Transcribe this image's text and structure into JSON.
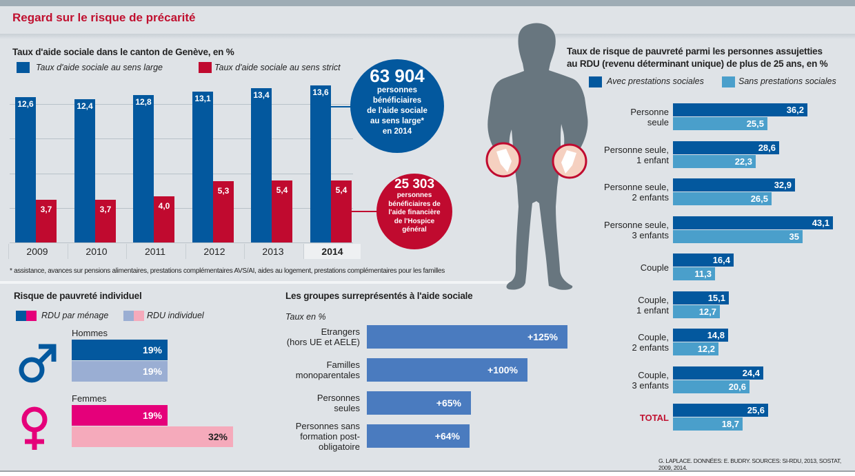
{
  "header": {
    "title": "Regard sur le risque de précarité"
  },
  "colors": {
    "blue": "#03589e",
    "red": "#c00a2f",
    "light_blue": "#4a9fcb",
    "group_bar": "#4a7bbf",
    "men_dark": "#03589e",
    "men_light": "#9aaed3",
    "women_dark": "#e5007a",
    "women_light": "#f5aabb",
    "silhouette": "#68767f",
    "total_label": "#c0102f"
  },
  "chart_data": [
    {
      "id": "aide-sociale",
      "type": "bar",
      "title": "Taux d'aide sociale dans le canton de Genève, en %",
      "categories": [
        "2009",
        "2010",
        "2011",
        "2012",
        "2013",
        "2014"
      ],
      "highlight_category": "2014",
      "series": [
        {
          "name": "Taux d'aide sociale au sens large",
          "labels": [
            "12,6",
            "12,4",
            "12,8",
            "13,1",
            "13,4",
            "13,6"
          ],
          "values": [
            12.6,
            12.4,
            12.8,
            13.1,
            13.4,
            13.6
          ]
        },
        {
          "name": "Taux d'aide sociale au sens strict",
          "labels": [
            "3,7",
            "3,7",
            "4,0",
            "5,3",
            "5,4",
            "5,4"
          ],
          "values": [
            3.7,
            3.7,
            4.0,
            5.3,
            5.4,
            5.4
          ]
        }
      ],
      "ylim": [
        0,
        12.6
      ],
      "gridlines": [
        3,
        6,
        9,
        12
      ],
      "grid": true,
      "callouts": [
        {
          "number": "63 904",
          "lines": [
            "personnes",
            "bénéficiaires",
            "de l'aide sociale",
            "au sens large*",
            "en 2014"
          ]
        },
        {
          "number": "25 303",
          "lines": [
            "personnes",
            "bénéficiaires de",
            "l'aide financière",
            "de l'Hospice",
            "général"
          ]
        }
      ],
      "footnote": "* assistance, avances sur pensions alimentaires, prestations complémentaires AVS/AI, aides au logement, prestations complémentaires pour les familles"
    },
    {
      "id": "pauvrete-individuel",
      "type": "bar",
      "title": "Risque de pauvreté individuel",
      "legend": [
        "RDU par ménage",
        "RDU individuel"
      ],
      "groups": [
        {
          "name": "Hommes",
          "values": [
            19,
            19
          ],
          "labels": [
            "19%",
            "19%"
          ]
        },
        {
          "name": "Femmes",
          "values": [
            19,
            32
          ],
          "labels": [
            "19%",
            "32%"
          ]
        }
      ]
    },
    {
      "id": "groupes-surrepresentes",
      "type": "bar",
      "title": "Les groupes surreprésentés à l'aide sociale",
      "subtitle": "Taux en %",
      "categories": [
        [
          "Etrangers",
          "(hors UE et AELE)"
        ],
        [
          "Familles",
          "monoparentales"
        ],
        [
          "Personnes",
          "seules"
        ],
        [
          "Personnes sans",
          "formation post-",
          "obligatoire"
        ]
      ],
      "values": [
        125,
        100,
        65,
        64
      ],
      "labels": [
        "+125%",
        "+100%",
        "+65%",
        "+64%"
      ]
    },
    {
      "id": "risque-pauvrete-rdu",
      "type": "bar",
      "title_lines": [
        "Taux de risque de pauvreté parmi les personnes assujetties",
        "au RDU (revenu déterminant unique) de plus de 25 ans, en %"
      ],
      "legend": [
        "Avec prestations sociales",
        "Sans prestations sociales"
      ],
      "categories": [
        [
          "Personne",
          "seule"
        ],
        [
          "Personne seule,",
          "1 enfant"
        ],
        [
          "Personne seule,",
          "2 enfants"
        ],
        [
          "Personne seule,",
          "3 enfants"
        ],
        [
          "Couple"
        ],
        [
          "Couple,",
          "1 enfant"
        ],
        [
          "Couple,",
          "2 enfants"
        ],
        [
          "Couple,",
          "3 enfants"
        ],
        [
          "TOTAL"
        ]
      ],
      "series": [
        {
          "name": "Avec prestations sociales",
          "values": [
            36.2,
            28.6,
            32.9,
            43.1,
            16.4,
            15.1,
            14.8,
            24.4,
            25.6
          ],
          "labels": [
            "36,2",
            "28,6",
            "32,9",
            "43,1",
            "16,4",
            "15,1",
            "14,8",
            "24,4",
            "25,6"
          ]
        },
        {
          "name": "Sans prestations sociales",
          "values": [
            25.5,
            22.3,
            26.5,
            35,
            11.3,
            12.7,
            12.2,
            20.6,
            18.7
          ],
          "labels": [
            "25,5",
            "22,3",
            "26,5",
            "35",
            "11,3",
            "12,7",
            "12,2",
            "20,6",
            "18,7"
          ]
        }
      ]
    }
  ],
  "credit": "G. LAPLACE. DONNÉES: E. BUDRY. SOURCES: SI-RDU, 2013, SOSTAT, 2009, 2014."
}
